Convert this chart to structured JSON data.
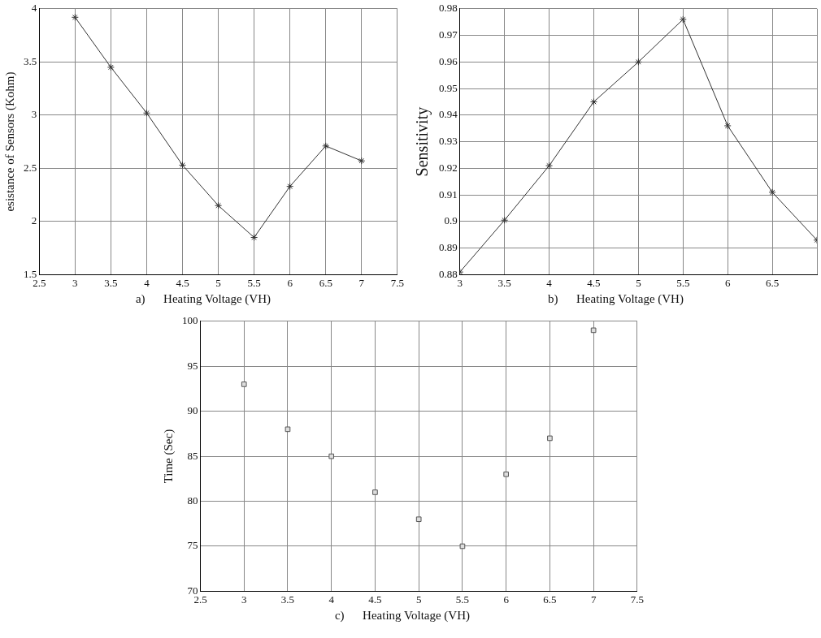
{
  "chart_data": [
    {
      "type": "line",
      "xlabel": "Heating Voltage (VH)",
      "ylabel": "esistance of Sensors (Kohm)",
      "annotations": [
        "a)"
      ],
      "x": [
        3,
        3.5,
        4,
        4.5,
        5,
        5.5,
        6,
        6.5,
        7
      ],
      "series": [
        {
          "color": "#333333",
          "values": [
            3.92,
            3.45,
            3.02,
            2.53,
            2.15,
            1.85,
            2.33,
            2.71,
            2.57
          ]
        }
      ],
      "xlim": [
        2.5,
        7.5
      ],
      "xticks": [
        2.5,
        3,
        3.5,
        4,
        4.5,
        5,
        5.5,
        6,
        6.5,
        7,
        7.5
      ],
      "ylim": [
        1.5,
        4
      ],
      "yticks": [
        1.5,
        2,
        2.5,
        3,
        3.5,
        4
      ],
      "grid": true,
      "marker": "cross",
      "line_style": "solid"
    },
    {
      "type": "line",
      "xlabel": "Heating Voltage (VH)",
      "ylabel": "Sensitivity",
      "annotations": [
        "b)"
      ],
      "x": [
        3,
        3.5,
        4,
        4.5,
        5,
        5.5,
        6,
        6.5,
        7
      ],
      "series": [
        {
          "color": "#333333",
          "values": [
            0.881,
            0.9005,
            0.921,
            0.945,
            0.96,
            0.976,
            0.936,
            0.911,
            0.893
          ]
        }
      ],
      "xlim": [
        3,
        7
      ],
      "xticks": [
        3,
        3.5,
        4,
        4.5,
        5,
        5.5,
        6,
        6.5,
        {
          "value": 7,
          "label": null
        }
      ],
      "ylim": [
        0.88,
        0.98
      ],
      "yticks": [
        0.88,
        0.89,
        0.9,
        0.91,
        0.92,
        0.93,
        0.94,
        0.95,
        0.96,
        0.97,
        0.98
      ],
      "grid": true,
      "marker": "cross",
      "line_style": "solid"
    },
    {
      "type": "scatter",
      "xlabel": "Heating Voltage (VH)",
      "ylabel": "Time (Sec)",
      "annotations": [
        "c)"
      ],
      "x": [
        3,
        3.5,
        4,
        4.5,
        5,
        5.5,
        6,
        6.5,
        7
      ],
      "series": [
        {
          "color": "#555555",
          "values": [
            93,
            88,
            85,
            81,
            78,
            75,
            83,
            87,
            99
          ]
        }
      ],
      "xlim": [
        2.5,
        7.5
      ],
      "xticks": [
        2.5,
        3,
        3.5,
        4,
        4.5,
        5,
        5.5,
        6,
        6.5,
        7,
        7.5
      ],
      "ylim": [
        70,
        100
      ],
      "yticks": [
        70,
        75,
        80,
        85,
        90,
        95,
        100
      ],
      "grid": true,
      "marker": "square"
    }
  ]
}
